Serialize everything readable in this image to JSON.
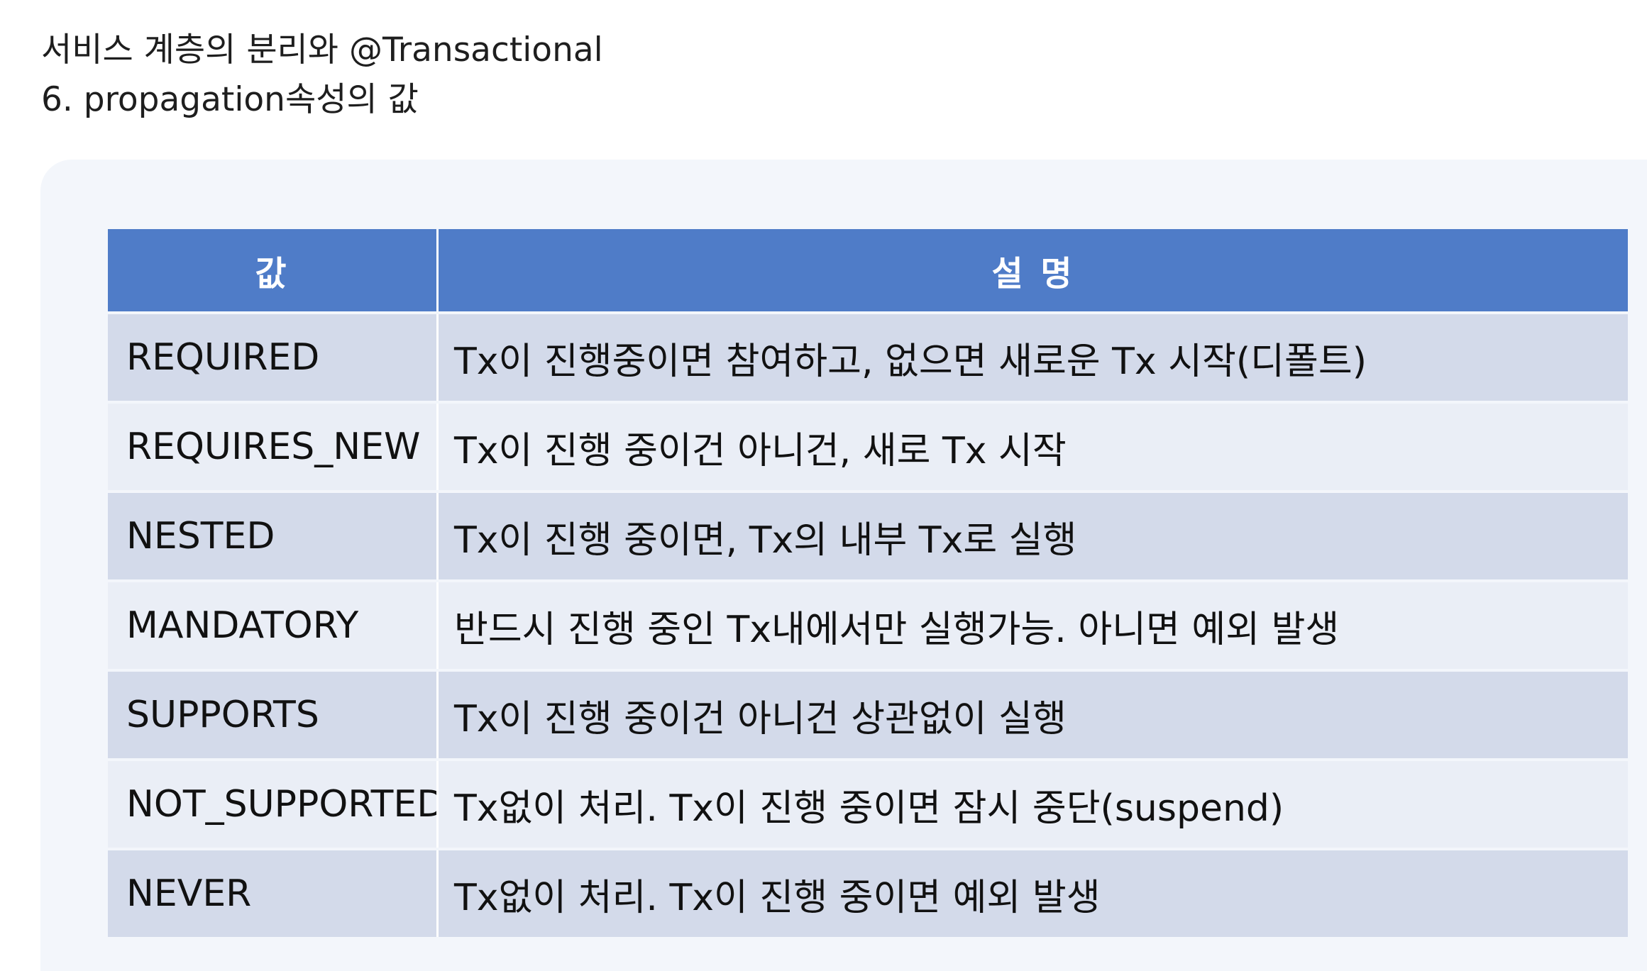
{
  "heading": {
    "line1": "서비스 계층의 분리와 @Transactional",
    "line2": "6. propagation속성의 값"
  },
  "table": {
    "headers": [
      "값",
      "설 명"
    ],
    "rows": [
      {
        "value": "REQUIRED",
        "desc": "Tx이 진행중이면 참여하고, 없으면 새로운 Tx 시작(디폴트)"
      },
      {
        "value": "REQUIRES_NEW",
        "desc": "Tx이 진행 중이건 아니건, 새로 Tx 시작"
      },
      {
        "value": "NESTED",
        "desc": "Tx이 진행 중이면, Tx의 내부 Tx로 실행"
      },
      {
        "value": "MANDATORY",
        "desc": "반드시 진행 중인 Tx내에서만 실행가능. 아니면 예외 발생"
      },
      {
        "value": "SUPPORTS",
        "desc": "Tx이 진행 중이건 아니건 상관없이 실행"
      },
      {
        "value": "NOT_SUPPORTED",
        "desc": "Tx없이 처리. Tx이 진행 중이면 잠시 중단(suspend)"
      },
      {
        "value": "NEVER",
        "desc": "Tx없이 처리. Tx이 진행 중이면 예외 발생"
      }
    ]
  },
  "colors": {
    "header_bg": "#4f7cc8",
    "row_odd": "#d3daea",
    "row_even": "#eaeef6",
    "slide_bg": "#f3f6fb"
  }
}
